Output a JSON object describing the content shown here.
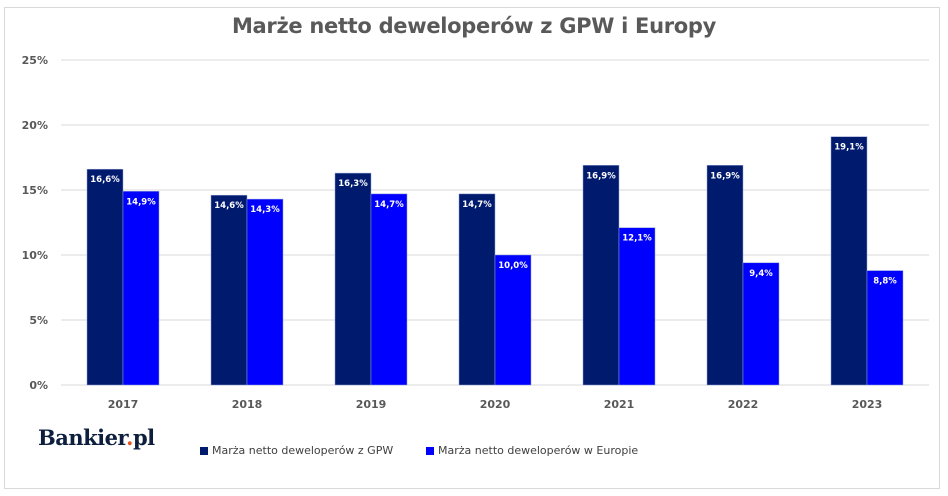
{
  "chart_data": {
    "type": "bar",
    "title": "Marże netto deweloperów z GPW i Europy",
    "xlabel": "",
    "ylabel": "",
    "categories": [
      "2017",
      "2018",
      "2019",
      "2020",
      "2021",
      "2022",
      "2023"
    ],
    "series": [
      {
        "name": "Marża netto deweloperów z GPW",
        "color": "#001a6e",
        "values": [
          16.6,
          14.6,
          16.3,
          14.7,
          16.9,
          16.9,
          19.1
        ],
        "labels": [
          "16,6%",
          "14,6%",
          "16,3%",
          "14,7%",
          "16,9%",
          "16,9%",
          "19,1%"
        ]
      },
      {
        "name": "Marża netto deweloperów w Europie",
        "color": "#0000ff",
        "values": [
          14.9,
          14.3,
          14.7,
          10.0,
          12.1,
          9.4,
          8.8
        ],
        "labels": [
          "14,9%",
          "14,3%",
          "14,7%",
          "10,0%",
          "12,1%",
          "9,4%",
          "8,8%"
        ]
      }
    ],
    "ylim": [
      0,
      25
    ],
    "yticks": [
      0,
      5,
      10,
      15,
      20,
      25
    ],
    "ytick_labels": [
      "0%",
      "5%",
      "10%",
      "15%",
      "20%",
      "25%"
    ],
    "grid": true,
    "legend_position": "bottom"
  },
  "branding": {
    "logo_main": "Bankier",
    "logo_dot": ".",
    "logo_tld": "pl"
  }
}
